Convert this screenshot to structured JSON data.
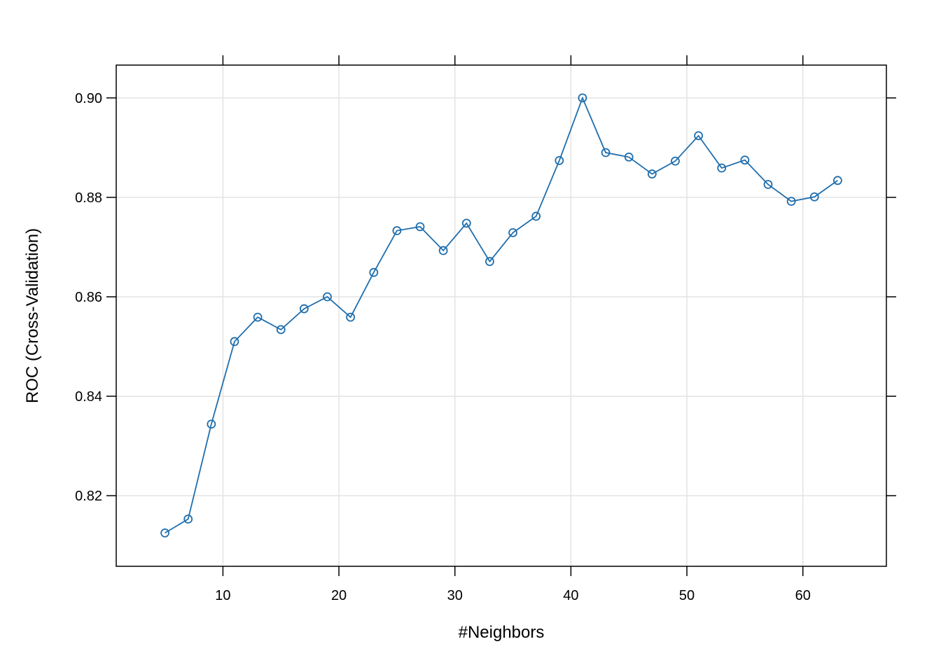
{
  "chart_data": {
    "type": "line",
    "title": "",
    "xlabel": "#Neighbors",
    "ylabel": "ROC (Cross-Validation)",
    "xlim": [
      0.8,
      67.2
    ],
    "ylim": [
      0.8058,
      0.9066
    ],
    "x_ticks": [
      10,
      20,
      30,
      40,
      50,
      60
    ],
    "x_tick_labels": [
      "10",
      "20",
      "30",
      "40",
      "50",
      "60"
    ],
    "y_ticks": [
      0.82,
      0.84,
      0.86,
      0.88,
      0.9
    ],
    "y_tick_labels": [
      "0.82",
      "0.84",
      "0.86",
      "0.88",
      "0.90"
    ],
    "grid": true,
    "line_color": "#1f6ead",
    "grid_color": "#e3e3e3",
    "marker": "open-circle",
    "x": [
      5,
      7,
      9,
      11,
      13,
      15,
      17,
      19,
      21,
      23,
      25,
      27,
      29,
      31,
      33,
      35,
      37,
      39,
      41,
      43,
      45,
      47,
      49,
      51,
      53,
      55,
      57,
      59,
      61,
      63
    ],
    "y": [
      0.8125,
      0.8153,
      0.8344,
      0.851,
      0.8559,
      0.8534,
      0.8576,
      0.86,
      0.8559,
      0.8649,
      0.8733,
      0.8741,
      0.8693,
      0.8748,
      0.8671,
      0.8729,
      0.8762,
      0.8874,
      0.9,
      0.889,
      0.8881,
      0.8847,
      0.8873,
      0.8924,
      0.8859,
      0.8875,
      0.8826,
      0.8792,
      0.8801,
      0.8834
    ]
  }
}
